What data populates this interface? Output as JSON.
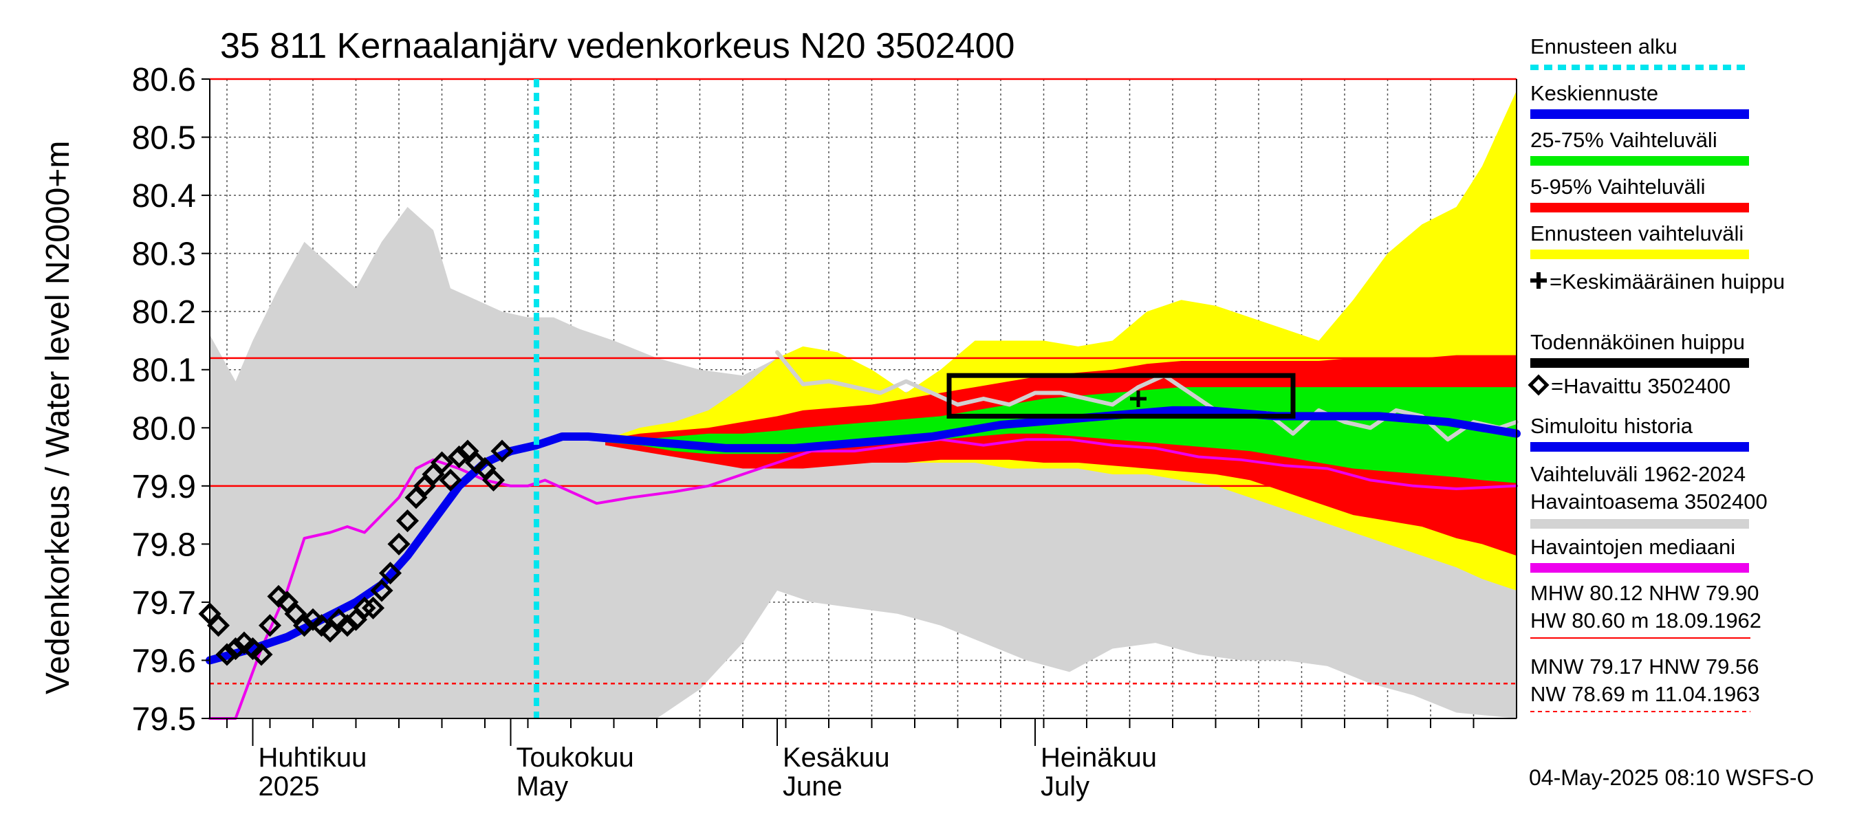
{
  "chart_data": {
    "type": "line",
    "title": "35 811 Kernaalanjärv vedenkorkeus N20 3502400",
    "ylabel": "Vedenkorkeus / Water level    N2000+m",
    "ylim": [
      79.5,
      80.6
    ],
    "yticks": [
      "79.5",
      "79.6",
      "79.7",
      "79.8",
      "79.9",
      "80.0",
      "80.1",
      "80.2",
      "80.3",
      "80.4",
      "80.5",
      "80.6"
    ],
    "xlim": [
      "2025-03-27",
      "2025-08-26"
    ],
    "months": [
      {
        "date": "2025-04-01",
        "fi": "Huhtikuu",
        "en": "2025"
      },
      {
        "date": "2025-05-01",
        "fi": "Toukokuu",
        "en": "May"
      },
      {
        "date": "2025-06-01",
        "fi": "Kesäkuu",
        "en": "June"
      },
      {
        "date": "2025-07-01",
        "fi": "Heinäkuu",
        "en": "July"
      }
    ],
    "grid": true,
    "forecast_start": "2025-05-04",
    "reference_lines": [
      {
        "label": "MHW",
        "value": 80.12,
        "style": "solid"
      },
      {
        "label": "NHW",
        "value": 79.9,
        "style": "solid"
      },
      {
        "label": "HW",
        "value": 80.6,
        "style": "solid"
      },
      {
        "label": "HNW",
        "value": 79.56,
        "style": "dashed"
      }
    ],
    "series": [
      {
        "name": "Vaihteluväli 1962-2024 Havaintoasema 3502400",
        "kind": "band",
        "color": "#d3d3d3",
        "x": [
          "2025-03-27",
          "2025-03-30",
          "2025-04-01",
          "2025-04-04",
          "2025-04-07",
          "2025-04-10",
          "2025-04-13",
          "2025-04-16",
          "2025-04-19",
          "2025-04-22",
          "2025-04-24",
          "2025-04-27",
          "2025-04-30",
          "2025-05-03",
          "2025-05-06",
          "2025-05-09",
          "2025-05-13",
          "2025-05-18",
          "2025-05-23",
          "2025-05-28",
          "2025-06-01",
          "2025-06-05",
          "2025-06-10",
          "2025-06-15",
          "2025-06-20",
          "2025-06-25",
          "2025-06-30",
          "2025-07-05",
          "2025-07-10",
          "2025-07-15",
          "2025-07-20",
          "2025-07-25",
          "2025-07-30",
          "2025-08-04",
          "2025-08-09",
          "2025-08-14",
          "2025-08-19",
          "2025-08-26"
        ],
        "high": [
          80.16,
          80.08,
          80.15,
          80.24,
          80.32,
          80.28,
          80.24,
          80.32,
          80.38,
          80.34,
          80.24,
          80.22,
          80.2,
          80.19,
          80.19,
          80.17,
          80.15,
          80.12,
          80.1,
          80.09,
          80.12,
          80.1,
          80.08,
          80.06,
          80.07,
          80.09,
          80.08,
          80.08,
          80.08,
          80.07,
          80.06,
          80.06,
          80.05,
          80.04,
          80.04,
          80.04,
          80.03,
          80.02
        ],
        "low": [
          79.5,
          79.5,
          79.5,
          79.5,
          79.5,
          79.5,
          79.5,
          79.5,
          79.5,
          79.5,
          79.5,
          79.5,
          79.5,
          79.5,
          79.5,
          79.5,
          79.5,
          79.5,
          79.55,
          79.63,
          79.72,
          79.7,
          79.69,
          79.68,
          79.66,
          79.63,
          79.6,
          79.58,
          79.62,
          79.63,
          79.61,
          79.6,
          79.6,
          79.59,
          79.56,
          79.54,
          79.51,
          79.5
        ]
      },
      {
        "name": "Ennusteen vaihteluväli",
        "kind": "band",
        "color": "#ffff00",
        "x": [
          "2025-05-12",
          "2025-05-16",
          "2025-05-20",
          "2025-05-24",
          "2025-05-28",
          "2025-06-01",
          "2025-06-04",
          "2025-06-08",
          "2025-06-12",
          "2025-06-16",
          "2025-06-20",
          "2025-06-24",
          "2025-06-28",
          "2025-07-02",
          "2025-07-06",
          "2025-07-10",
          "2025-07-14",
          "2025-07-18",
          "2025-07-22",
          "2025-07-26",
          "2025-07-30",
          "2025-08-03",
          "2025-08-07",
          "2025-08-11",
          "2025-08-15",
          "2025-08-19",
          "2025-08-22",
          "2025-08-26"
        ],
        "high": [
          79.98,
          80.0,
          80.01,
          80.03,
          80.07,
          80.12,
          80.14,
          80.13,
          80.1,
          80.06,
          80.1,
          80.15,
          80.15,
          80.15,
          80.14,
          80.15,
          80.2,
          80.22,
          80.21,
          80.19,
          80.17,
          80.15,
          80.22,
          80.3,
          80.35,
          80.38,
          80.45,
          80.58
        ],
        "low": [
          79.98,
          79.97,
          79.96,
          79.95,
          79.94,
          79.94,
          79.94,
          79.94,
          79.94,
          79.94,
          79.94,
          79.94,
          79.93,
          79.93,
          79.93,
          79.92,
          79.92,
          79.91,
          79.9,
          79.88,
          79.86,
          79.84,
          79.82,
          79.8,
          79.78,
          79.76,
          79.74,
          79.72
        ]
      },
      {
        "name": "5-95% Vaihteluväli",
        "kind": "band",
        "color": "#ff0000",
        "x": [
          "2025-05-12",
          "2025-05-16",
          "2025-05-20",
          "2025-05-24",
          "2025-05-28",
          "2025-06-01",
          "2025-06-04",
          "2025-06-08",
          "2025-06-12",
          "2025-06-16",
          "2025-06-20",
          "2025-06-24",
          "2025-06-28",
          "2025-07-02",
          "2025-07-06",
          "2025-07-10",
          "2025-07-14",
          "2025-07-18",
          "2025-07-22",
          "2025-07-26",
          "2025-07-30",
          "2025-08-03",
          "2025-08-07",
          "2025-08-11",
          "2025-08-15",
          "2025-08-19",
          "2025-08-22",
          "2025-08-26"
        ],
        "high": [
          79.98,
          79.99,
          79.995,
          80.0,
          80.01,
          80.02,
          80.03,
          80.035,
          80.04,
          80.05,
          80.06,
          80.07,
          80.08,
          80.09,
          80.095,
          80.1,
          80.11,
          80.115,
          80.115,
          80.115,
          80.115,
          80.115,
          80.12,
          80.12,
          80.12,
          80.125,
          80.125,
          80.125
        ],
        "low": [
          79.97,
          79.96,
          79.95,
          79.94,
          79.93,
          79.93,
          79.93,
          79.935,
          79.94,
          79.94,
          79.945,
          79.945,
          79.945,
          79.94,
          79.94,
          79.935,
          79.93,
          79.925,
          79.92,
          79.91,
          79.89,
          79.87,
          79.85,
          79.84,
          79.83,
          79.81,
          79.8,
          79.78
        ]
      },
      {
        "name": "25-75% Vaihteluväli",
        "kind": "band",
        "color": "#00ee00",
        "x": [
          "2025-05-12",
          "2025-05-16",
          "2025-05-20",
          "2025-05-24",
          "2025-05-28",
          "2025-06-01",
          "2025-06-04",
          "2025-06-08",
          "2025-06-12",
          "2025-06-16",
          "2025-06-20",
          "2025-06-24",
          "2025-06-28",
          "2025-07-02",
          "2025-07-06",
          "2025-07-10",
          "2025-07-14",
          "2025-07-18",
          "2025-07-22",
          "2025-07-26",
          "2025-07-30",
          "2025-08-03",
          "2025-08-07",
          "2025-08-11",
          "2025-08-15",
          "2025-08-19",
          "2025-08-22",
          "2025-08-26"
        ],
        "high": [
          79.98,
          79.98,
          79.985,
          79.99,
          79.99,
          79.995,
          80.0,
          80.005,
          80.01,
          80.015,
          80.02,
          80.03,
          80.04,
          80.05,
          80.055,
          80.06,
          80.065,
          80.07,
          80.07,
          80.07,
          80.07,
          80.07,
          80.07,
          80.07,
          80.07,
          80.07,
          80.07,
          80.07
        ],
        "low": [
          79.975,
          79.97,
          79.96,
          79.955,
          79.955,
          79.955,
          79.96,
          79.965,
          79.97,
          79.975,
          79.98,
          79.985,
          79.99,
          79.99,
          79.985,
          79.98,
          79.975,
          79.97,
          79.965,
          79.96,
          79.95,
          79.94,
          79.93,
          79.925,
          79.92,
          79.915,
          79.91,
          79.905
        ]
      },
      {
        "name": "Havaintojen mediaani",
        "kind": "line",
        "color": "#ee00ee",
        "x": [
          "2025-03-27",
          "2025-03-30",
          "2025-04-02",
          "2025-04-05",
          "2025-04-07",
          "2025-04-10",
          "2025-04-12",
          "2025-04-14",
          "2025-04-16",
          "2025-04-18",
          "2025-04-20",
          "2025-04-22",
          "2025-04-25",
          "2025-04-28",
          "2025-05-01",
          "2025-05-03",
          "2025-05-05",
          "2025-05-08",
          "2025-05-11",
          "2025-05-15",
          "2025-05-20",
          "2025-05-24",
          "2025-05-28",
          "2025-06-01",
          "2025-06-05",
          "2025-06-10",
          "2025-06-15",
          "2025-06-20",
          "2025-06-25",
          "2025-06-30",
          "2025-07-05",
          "2025-07-10",
          "2025-07-15",
          "2025-07-20",
          "2025-07-25",
          "2025-07-30",
          "2025-08-04",
          "2025-08-09",
          "2025-08-14",
          "2025-08-19",
          "2025-08-26"
        ],
        "y": [
          79.5,
          79.5,
          79.62,
          79.72,
          79.81,
          79.82,
          79.83,
          79.82,
          79.85,
          79.88,
          79.93,
          79.945,
          79.93,
          79.91,
          79.9,
          79.9,
          79.91,
          79.89,
          79.87,
          79.88,
          79.89,
          79.9,
          79.92,
          79.94,
          79.96,
          79.96,
          79.97,
          79.98,
          79.97,
          79.98,
          79.98,
          79.97,
          79.965,
          79.95,
          79.945,
          79.935,
          79.93,
          79.91,
          79.9,
          79.895,
          79.9
        ]
      },
      {
        "name": "Todennäköinen huippu (harmaa)",
        "kind": "line",
        "color": "#d0d0d0",
        "x": [
          "2025-06-01",
          "2025-06-04",
          "2025-06-07",
          "2025-06-10",
          "2025-06-13",
          "2025-06-16",
          "2025-06-19",
          "2025-06-22",
          "2025-06-25",
          "2025-06-28",
          "2025-07-01",
          "2025-07-04",
          "2025-07-07",
          "2025-07-10",
          "2025-07-13",
          "2025-07-16",
          "2025-07-19",
          "2025-07-22",
          "2025-07-25",
          "2025-07-28",
          "2025-07-31",
          "2025-08-03",
          "2025-08-06",
          "2025-08-09",
          "2025-08-12",
          "2025-08-15",
          "2025-08-18",
          "2025-08-21",
          "2025-08-24",
          "2025-08-26"
        ],
        "y": [
          80.13,
          80.075,
          80.08,
          80.07,
          80.06,
          80.08,
          80.06,
          80.04,
          80.05,
          80.04,
          80.06,
          80.06,
          80.05,
          80.04,
          80.07,
          80.09,
          80.06,
          80.03,
          80.02,
          80.025,
          79.99,
          80.03,
          80.01,
          80.0,
          80.03,
          80.02,
          79.98,
          80.01,
          80.0,
          80.01
        ]
      },
      {
        "name": "Simuloitu historia / Keskiennuste",
        "kind": "line",
        "color": "#0000ee",
        "x": [
          "2025-03-27",
          "2025-04-01",
          "2025-04-05",
          "2025-04-09",
          "2025-04-13",
          "2025-04-16",
          "2025-04-19",
          "2025-04-22",
          "2025-04-25",
          "2025-04-28",
          "2025-05-01",
          "2025-05-04",
          "2025-05-07",
          "2025-05-10",
          "2025-05-14",
          "2025-05-18",
          "2025-05-22",
          "2025-05-26",
          "2025-05-30",
          "2025-06-03",
          "2025-06-07",
          "2025-06-11",
          "2025-06-15",
          "2025-06-19",
          "2025-06-23",
          "2025-06-27",
          "2025-07-01",
          "2025-07-05",
          "2025-07-09",
          "2025-07-13",
          "2025-07-17",
          "2025-07-21",
          "2025-07-25",
          "2025-07-29",
          "2025-08-02",
          "2025-08-06",
          "2025-08-10",
          "2025-08-14",
          "2025-08-18",
          "2025-08-22",
          "2025-08-26"
        ],
        "y": [
          79.6,
          79.62,
          79.64,
          79.67,
          79.7,
          79.73,
          79.78,
          79.84,
          79.9,
          79.94,
          79.96,
          79.97,
          79.985,
          79.985,
          79.98,
          79.975,
          79.97,
          79.965,
          79.965,
          79.965,
          79.97,
          79.975,
          79.98,
          79.985,
          79.995,
          80.005,
          80.01,
          80.015,
          80.02,
          80.025,
          80.03,
          80.03,
          80.025,
          80.02,
          80.02,
          80.02,
          80.02,
          80.015,
          80.01,
          80.0,
          79.99
        ]
      },
      {
        "name": "Havaittu 3502400",
        "kind": "points",
        "color": "#000000",
        "x": [
          "2025-03-27",
          "2025-03-28",
          "2025-03-29",
          "2025-03-30",
          "2025-03-31",
          "2025-04-01",
          "2025-04-02",
          "2025-04-03",
          "2025-04-04",
          "2025-04-05",
          "2025-04-06",
          "2025-04-07",
          "2025-04-08",
          "2025-04-09",
          "2025-04-10",
          "2025-04-11",
          "2025-04-12",
          "2025-04-13",
          "2025-04-14",
          "2025-04-15",
          "2025-04-16",
          "2025-04-17",
          "2025-04-18",
          "2025-04-19",
          "2025-04-20",
          "2025-04-21",
          "2025-04-22",
          "2025-04-23",
          "2025-04-24",
          "2025-04-25",
          "2025-04-26",
          "2025-04-27",
          "2025-04-28",
          "2025-04-29",
          "2025-04-30"
        ],
        "y": [
          79.68,
          79.66,
          79.61,
          79.62,
          79.63,
          79.62,
          79.61,
          79.66,
          79.71,
          79.7,
          79.68,
          79.66,
          79.67,
          79.66,
          79.65,
          79.67,
          79.66,
          79.67,
          79.69,
          79.69,
          79.72,
          79.75,
          79.8,
          79.84,
          79.88,
          79.9,
          79.92,
          79.94,
          79.91,
          79.95,
          79.96,
          79.94,
          79.93,
          79.91,
          79.96
        ]
      },
      {
        "name": "Keskimääräinen huippu",
        "kind": "marker",
        "color": "#000000",
        "x": [
          "2025-07-13"
        ],
        "y": [
          80.05
        ]
      },
      {
        "name": "Todennäköinen huippu",
        "kind": "box",
        "color": "#000000",
        "x": [
          "2025-06-21",
          "2025-07-31"
        ],
        "y": [
          80.02,
          80.09
        ]
      }
    ],
    "legend": {
      "placement": "right",
      "items": [
        {
          "label": "Ennusteen alku",
          "color": "#00e5ee",
          "swatch": "dotted"
        },
        {
          "label": "Keskiennuste",
          "color": "#0000ee",
          "swatch": "line"
        },
        {
          "label": "25-75% Vaihteluväli",
          "color": "#00ee00",
          "swatch": "line"
        },
        {
          "label": "5-95% Vaihteluväli",
          "color": "#ff0000",
          "swatch": "line"
        },
        {
          "label": "Ennusteen vaihteluväli",
          "color": "#ffff00",
          "swatch": "line"
        },
        {
          "label": "=Keskimääräinen huippu",
          "color": "#000000",
          "swatch": "plus-prefix"
        },
        {
          "label": "Todennäköinen huippu",
          "color": "#000000",
          "swatch": "line"
        },
        {
          "label": "=Havaittu 3502400",
          "color": "#000000",
          "swatch": "diamond-prefix"
        },
        {
          "label": "Simuloitu historia",
          "color": "#0000ee",
          "swatch": "line"
        },
        {
          "label": "Vaihteluväli 1962-2024",
          "label2": " Havaintoasema 3502400",
          "color": "#d3d3d3",
          "swatch": "line"
        },
        {
          "label": "Havaintojen mediaani",
          "color": "#ee00ee",
          "swatch": "line"
        }
      ]
    },
    "stats": {
      "block1_line1": "MHW  80.12 NHW  79.90",
      "block1_line2": "HW  80.60 m 18.09.1962",
      "block2_line1": "MNW  79.17 HNW  79.56",
      "block2_line2": "NW  78.69 m 11.04.1963"
    },
    "timestamp": "04-May-2025 08:10 WSFS-O"
  }
}
